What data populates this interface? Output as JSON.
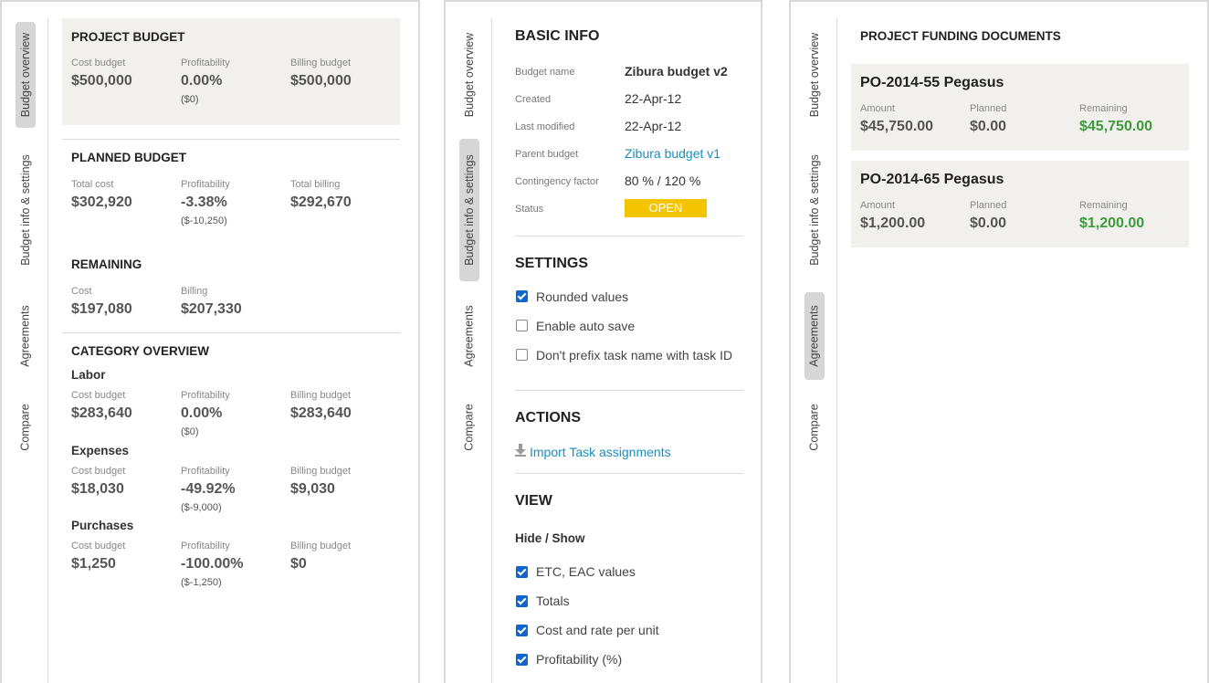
{
  "tabs": {
    "budget_overview": "Budget overview",
    "budget_info_settings": "Budget info & settings",
    "agreements": "Agreements",
    "compare": "Compare"
  },
  "overview": {
    "project_budget": {
      "title": "PROJECT BUDGET",
      "cost_label": "Cost budget",
      "cost": "$500,000",
      "profit_label": "Profitability",
      "profit": "0.00%",
      "profit_sub": "($0)",
      "billing_label": "Billing budget",
      "billing": "$500,000"
    },
    "planned_budget": {
      "title": "PLANNED BUDGET",
      "cost_label": "Total cost",
      "cost": "$302,920",
      "profit_label": "Profitability",
      "profit": "-3.38%",
      "profit_sub": "($-10,250)",
      "billing_label": "Total billing",
      "billing": "$292,670"
    },
    "remaining": {
      "title": "REMAINING",
      "cost_label": "Cost",
      "cost": "$197,080",
      "billing_label": "Billing",
      "billing": "$207,330"
    },
    "category_overview": {
      "title": "CATEGORY OVERVIEW",
      "categories": [
        {
          "name": "Labor",
          "cost_label": "Cost budget",
          "cost": "$283,640",
          "profit_label": "Profitability",
          "profit": "0.00%",
          "profit_sub": "($0)",
          "billing_label": "Billing budget",
          "billing": "$283,640"
        },
        {
          "name": "Expenses",
          "cost_label": "Cost budget",
          "cost": "$18,030",
          "profit_label": "Profitability",
          "profit": "-49.92%",
          "profit_sub": "($-9,000)",
          "billing_label": "Billing budget",
          "billing": "$9,030"
        },
        {
          "name": "Purchases",
          "cost_label": "Cost budget",
          "cost": "$1,250",
          "profit_label": "Profitability",
          "profit": "-100.00%",
          "profit_sub": "($-1,250)",
          "billing_label": "Billing budget",
          "billing": "$0"
        }
      ]
    }
  },
  "settings_panel": {
    "basic_info": {
      "title": "BASIC INFO",
      "rows": [
        {
          "label": "Budget name",
          "value": "Zibura budget v2"
        },
        {
          "label": "Created",
          "value": "22-Apr-12"
        },
        {
          "label": "Last modified",
          "value": "22-Apr-12"
        },
        {
          "label": "Parent budget",
          "value": "Zibura budget v1"
        },
        {
          "label": "Contingency factor",
          "value": "80 % / 120 %"
        },
        {
          "label": "Status",
          "value": "OPEN"
        }
      ]
    },
    "settings": {
      "title": "SETTINGS",
      "options": [
        {
          "label": "Rounded values",
          "checked": true
        },
        {
          "label": "Enable auto save",
          "checked": false
        },
        {
          "label": "Don't prefix task name with task ID",
          "checked": false
        }
      ]
    },
    "actions": {
      "title": "ACTIONS",
      "import_label": "Import Task assignments"
    },
    "view": {
      "title": "VIEW",
      "subtitle": "Hide / Show",
      "options": [
        {
          "label": "ETC, EAC values",
          "checked": true
        },
        {
          "label": "Totals",
          "checked": true
        },
        {
          "label": "Cost and rate per unit",
          "checked": true
        },
        {
          "label": "Profitability (%)",
          "checked": true
        }
      ]
    },
    "status_color": "#f5c400",
    "link_color": "#1a8fbf",
    "checkbox_color": "#1166cc"
  },
  "agreements_panel": {
    "title": "PROJECT FUNDING DOCUMENTS",
    "documents": [
      {
        "name": "PO-2014-55 Pegasus",
        "amount_label": "Amount",
        "amount": "$45,750.00",
        "planned_label": "Planned",
        "planned": "$0.00",
        "remaining_label": "Remaining",
        "remaining": "$45,750.00"
      },
      {
        "name": "PO-2014-65 Pegasus",
        "amount_label": "Amount",
        "amount": "$1,200.00",
        "planned_label": "Planned",
        "planned": "$0.00",
        "remaining_label": "Remaining",
        "remaining": "$1,200.00"
      }
    ],
    "remaining_color": "#3c9a3c"
  }
}
